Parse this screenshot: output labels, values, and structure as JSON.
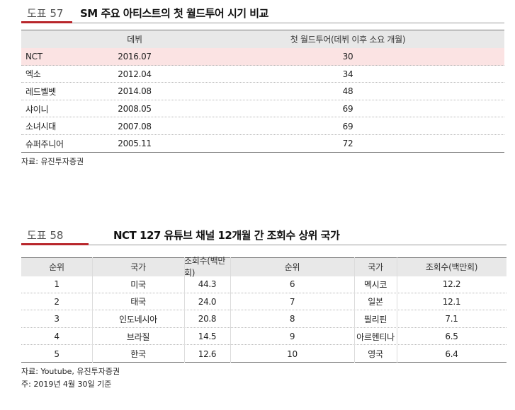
{
  "tables": [
    {
      "label": "도표 57",
      "title": "SM 주요 아티스트의 첫 월드투어 시기 비교",
      "header": [
        "데뷔",
        "첫 월드투어(데뷔 이후 소요 개월)"
      ],
      "rows": [
        [
          "NCT",
          "2016.07",
          "30"
        ],
        [
          "엑소",
          "2012.04",
          "34"
        ],
        [
          "레드벨벳",
          "2014.08",
          "48"
        ],
        [
          "샤이니",
          "2008.05",
          "69"
        ],
        [
          "소녀시대",
          "2007.08",
          "69"
        ],
        [
          "슈퍼주니어",
          "2005.11",
          "72"
        ]
      ],
      "notes": [
        "자료: 유진투자증권"
      ]
    },
    {
      "label": "도표 58",
      "title": "NCT 127 유튜브 채널 12개월 간 조회수 상위 국가",
      "header": [
        "순위",
        "국가",
        "조회수(백만회)",
        "순위",
        "국가",
        "조회수(백만회)"
      ],
      "rows": [
        [
          "1",
          "미국",
          "44.3",
          "6",
          "멕시코",
          "12.2"
        ],
        [
          "2",
          "태국",
          "24.0",
          "7",
          "일본",
          "12.1"
        ],
        [
          "3",
          "인도네시아",
          "20.8",
          "8",
          "필리핀",
          "7.1"
        ],
        [
          "4",
          "브라질",
          "14.5",
          "9",
          "아르헨티나",
          "6.5"
        ],
        [
          "5",
          "한국",
          "12.6",
          "10",
          "영국",
          "6.4"
        ]
      ],
      "notes": [
        "자료: Youtube, 유진투자증권",
        "주: 2019년 4월 30일 기준"
      ]
    }
  ]
}
